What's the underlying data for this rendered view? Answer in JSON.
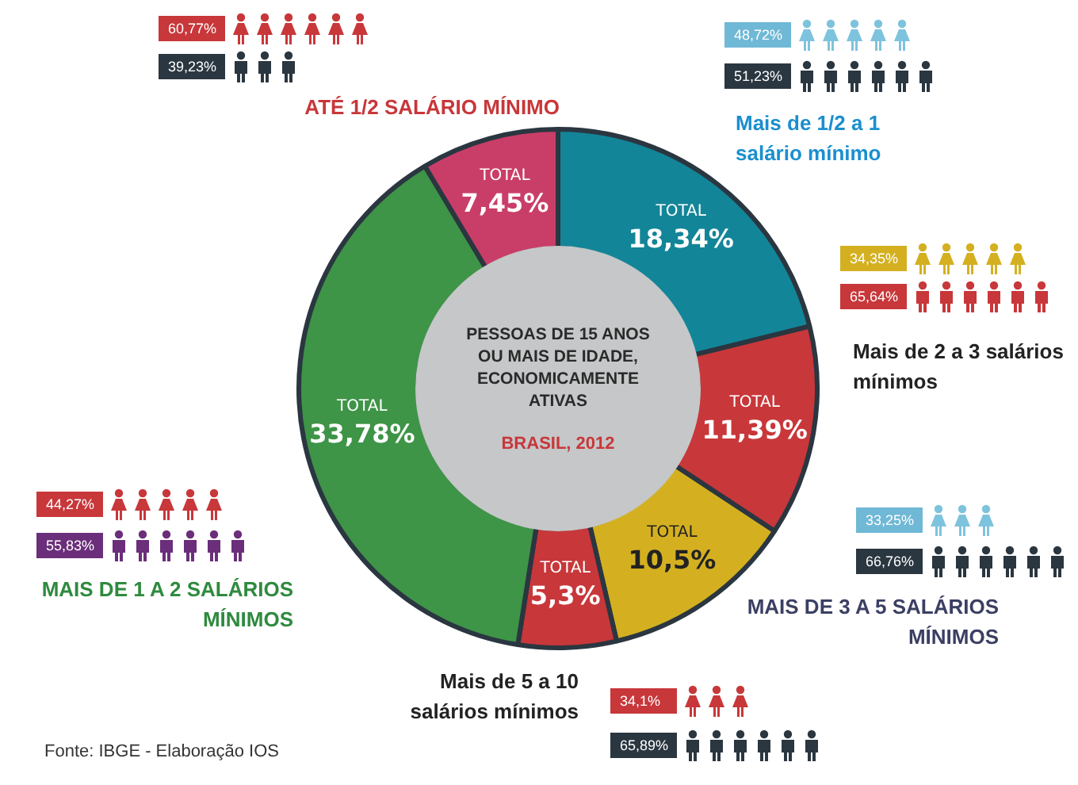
{
  "chart_data": {
    "type": "donut",
    "title": "PESSOAS DE 15 ANOS OU MAIS DE IDADE, ECONOMICAMENTE ATIVAS",
    "subtitle": "BRASIL, 2012",
    "categories": [
      "Mais de 1/2 a 1 salário mínimo",
      "Mais de 2 a 3 salários mínimos",
      "MAIS DE 3 A 5 SALÁRIOS MÍNIMOS",
      "Mais de 5 a 10 salários mínimos",
      "MAIS DE 1 A 2 SALÁRIOS MÍNIMOS",
      "ATÉ 1/2 SALÁRIO MÍNIMO"
    ],
    "values": [
      18.34,
      11.39,
      10.5,
      5.3,
      33.78,
      7.45
    ],
    "colors": [
      "#138598",
      "#c8373a",
      "#d4b021",
      "#c8373a",
      "#3e9447",
      "#c93e68"
    ],
    "value_labels": [
      "TOTAL 18,34%",
      "TOTAL 11,39%",
      "TOTAL 10,5%",
      "TOTAL 5,3%",
      "TOTAL 33,78%",
      "TOTAL 7,45%"
    ],
    "annotations": [
      "48,72%",
      "51,23%",
      "34,35%",
      "65,64%",
      "33,25%",
      "66,76%",
      "34,1%",
      "65,89%",
      "44,27%",
      "55,83%",
      "60,77%",
      "39,23%",
      "Fonte: IBGE - Elaboração IOS"
    ]
  }
}
